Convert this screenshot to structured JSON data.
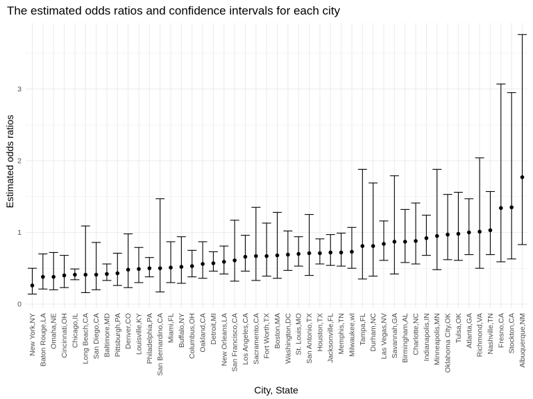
{
  "chart_data": {
    "type": "scatter",
    "title": "The estimated odds ratios and confidence intervals for each city",
    "xlabel": "City, State",
    "ylabel": "Estimated odds ratios",
    "ylim": [
      0,
      3.9
    ],
    "yticks": [
      0,
      1,
      2,
      3
    ],
    "grid": true,
    "legend": "none",
    "point_color": "#000000",
    "grid_color": "#ebebeb",
    "categories": [
      "New York,NY",
      "Baton Rouge,LA",
      "Omaha,NE",
      "Cincinnati,OH",
      "Chicago,IL",
      "Long Beach,CA",
      "San Diego,CA",
      "Baltimore,MD",
      "Pittsburgh,PA",
      "Denver,CO",
      "Louisville,KY",
      "Philadelphia,PA",
      "San Bernardino,CA",
      "Miami,FL",
      "Buffalo,NY",
      "Columbus,OH",
      "Oakland,CA",
      "Detroit,MI",
      "New Orleans,LA",
      "San Francisco,CA",
      "Los Angeles,CA",
      "Sacramento,CA",
      "Fort Worth,TX",
      "Boston,MA",
      "Washington,DC",
      "St. Louis,MO",
      "San Antonio,TX",
      "Houston,TX",
      "Jacksonville,FL",
      "Memphis,TN",
      "Milwaukee,wI",
      "Tampa,FL",
      "Durham,NC",
      "Las Vegas,NV",
      "Savannah,GA",
      "Birmingham,AL",
      "Charlotte,NC",
      "Indianapolis,IN",
      "Minneapolis,MN",
      "Oklahoma City,OK",
      "Tulsa,OK",
      "Atlanta,GA",
      "Richmond,VA",
      "Nashville,TN",
      "Fresno,CA",
      "Stockton,CA",
      "Albuquerque,NM"
    ],
    "values": [
      0.26,
      0.38,
      0.38,
      0.4,
      0.41,
      0.41,
      0.41,
      0.42,
      0.43,
      0.48,
      0.49,
      0.5,
      0.5,
      0.51,
      0.52,
      0.53,
      0.56,
      0.57,
      0.59,
      0.61,
      0.66,
      0.67,
      0.67,
      0.68,
      0.69,
      0.7,
      0.71,
      0.71,
      0.72,
      0.72,
      0.73,
      0.81,
      0.81,
      0.84,
      0.87,
      0.87,
      0.88,
      0.92,
      0.95,
      0.97,
      0.98,
      1.0,
      1.01,
      1.03,
      1.34,
      1.35,
      1.77
    ],
    "lower": [
      0.14,
      0.21,
      0.2,
      0.23,
      0.34,
      0.16,
      0.2,
      0.33,
      0.26,
      0.23,
      0.3,
      0.38,
      0.17,
      0.3,
      0.29,
      0.38,
      0.36,
      0.46,
      0.42,
      0.32,
      0.46,
      0.33,
      0.39,
      0.36,
      0.47,
      0.53,
      0.4,
      0.56,
      0.54,
      0.53,
      0.5,
      0.35,
      0.39,
      0.61,
      0.42,
      0.58,
      0.56,
      0.68,
      0.48,
      0.62,
      0.61,
      0.69,
      0.5,
      0.69,
      0.59,
      0.63,
      0.83
    ],
    "upper": [
      0.5,
      0.7,
      0.72,
      0.68,
      0.49,
      1.09,
      0.86,
      0.56,
      0.71,
      0.98,
      0.79,
      0.65,
      1.47,
      0.87,
      0.94,
      0.75,
      0.87,
      0.73,
      0.81,
      1.17,
      0.96,
      1.35,
      1.13,
      1.28,
      1.02,
      0.94,
      1.25,
      0.91,
      0.97,
      0.99,
      1.07,
      1.88,
      1.69,
      1.16,
      1.79,
      1.32,
      1.41,
      1.24,
      1.88,
      1.53,
      1.56,
      1.47,
      2.04,
      1.57,
      3.07,
      2.95,
      3.76
    ]
  }
}
